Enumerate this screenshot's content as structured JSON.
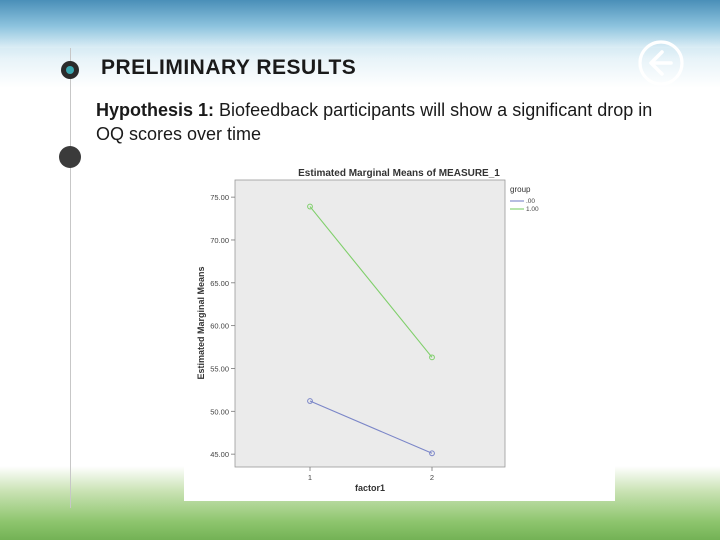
{
  "slide": {
    "title": "PRELIMINARY RESULTS",
    "hypothesis_label": "Hypothesis 1:",
    "hypothesis_text": "Biofeedback participants will show a significant drop in OQ scores over time",
    "back_icon": "back-arrow-circle-icon"
  },
  "colors": {
    "series_00": "#7b86c8",
    "series_100": "#7fcf6a",
    "plot_bg": "#ebebeb",
    "grass": "#8ec56e",
    "sky": "#4a8fb8"
  },
  "chart_data": {
    "type": "line",
    "title": "Estimated Marginal Means of MEASURE_1",
    "xlabel": "factor1",
    "ylabel": "Estimated Marginal Means",
    "categories": [
      "1",
      "2"
    ],
    "yticks": [
      "45.00",
      "50.00",
      "55.00",
      "60.00",
      "65.00",
      "70.00",
      "75.00"
    ],
    "ylim": [
      43.5,
      77
    ],
    "legend_title": "group",
    "legend_position": "top-right",
    "grid": false,
    "series": [
      {
        "name": ".00",
        "values": [
          51.2,
          45.1
        ],
        "color": "#7b86c8"
      },
      {
        "name": "1.00",
        "values": [
          73.9,
          56.3
        ],
        "color": "#7fcf6a"
      }
    ]
  }
}
